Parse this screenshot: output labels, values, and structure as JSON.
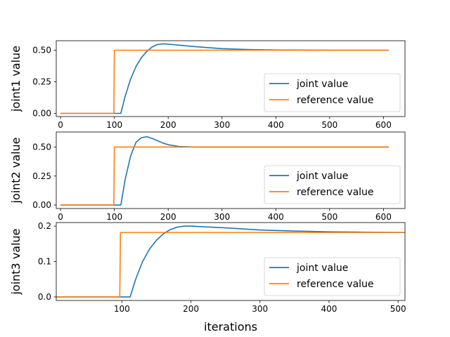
{
  "figure": {
    "xlabel": "iterations"
  },
  "colors": {
    "joint": "#1f77b4",
    "reference": "#ff7f0e"
  },
  "chart_data": [
    {
      "type": "line",
      "ylabel": "joint1 value",
      "xlim": [
        -8,
        640
      ],
      "ylim": [
        -0.025,
        0.575
      ],
      "xticks": [
        0,
        100,
        200,
        300,
        400,
        500,
        600
      ],
      "yticks": [
        0.0,
        0.25,
        0.5
      ],
      "ytick_labels": [
        "0.00",
        "0.25",
        "0.50"
      ],
      "legend": {
        "position": "lower-right",
        "entries": [
          "joint value",
          "reference value"
        ]
      },
      "series": [
        {
          "name": "joint value",
          "color": "#1f77b4",
          "x": [
            0,
            110,
            112,
            120,
            130,
            140,
            150,
            160,
            170,
            180,
            190,
            200,
            220,
            250,
            300,
            350,
            400,
            450,
            500,
            550,
            610
          ],
          "y": [
            0,
            0,
            0,
            0.135,
            0.27,
            0.37,
            0.44,
            0.49,
            0.525,
            0.545,
            0.55,
            0.548,
            0.54,
            0.528,
            0.512,
            0.505,
            0.502,
            0.501,
            0.5,
            0.5,
            0.5
          ]
        },
        {
          "name": "reference value",
          "color": "#ff7f0e",
          "x": [
            0,
            99,
            100,
            610
          ],
          "y": [
            0,
            0,
            0.5,
            0.5
          ]
        }
      ]
    },
    {
      "type": "line",
      "ylabel": "joint2 value",
      "xlim": [
        -8,
        640
      ],
      "ylim": [
        -0.03,
        0.63
      ],
      "xticks": [
        0,
        100,
        200,
        300,
        400,
        500,
        600
      ],
      "yticks": [
        0.0,
        0.25,
        0.5
      ],
      "ytick_labels": [
        "0.00",
        "0.25",
        "0.50"
      ],
      "legend": {
        "position": "lower-right",
        "entries": [
          "joint value",
          "reference value"
        ]
      },
      "series": [
        {
          "name": "joint value",
          "color": "#1f77b4",
          "x": [
            0,
            110,
            112,
            120,
            130,
            140,
            150,
            160,
            170,
            180,
            190,
            200,
            220,
            250,
            300,
            350,
            610
          ],
          "y": [
            0,
            0,
            0,
            0.22,
            0.42,
            0.54,
            0.58,
            0.59,
            0.575,
            0.555,
            0.535,
            0.52,
            0.505,
            0.5,
            0.5,
            0.5,
            0.5
          ]
        },
        {
          "name": "reference value",
          "color": "#ff7f0e",
          "x": [
            0,
            99,
            100,
            610
          ],
          "y": [
            0,
            0,
            0.5,
            0.5
          ]
        }
      ]
    },
    {
      "type": "line",
      "ylabel": "joint3 value",
      "xlabel": "iterations",
      "xlim": [
        5,
        510
      ],
      "ylim": [
        -0.01,
        0.21
      ],
      "xticks": [
        100,
        200,
        300,
        400,
        500
      ],
      "yticks": [
        0.0,
        0.1,
        0.2
      ],
      "ytick_labels": [
        "0.0",
        "0.1",
        "0.2"
      ],
      "legend": {
        "position": "lower-right",
        "entries": [
          "joint value",
          "reference value"
        ]
      },
      "series": [
        {
          "name": "joint value",
          "color": "#1f77b4",
          "x": [
            5,
            110,
            112,
            120,
            130,
            140,
            150,
            160,
            170,
            180,
            190,
            200,
            220,
            250,
            300,
            350,
            400,
            450,
            510
          ],
          "y": [
            0,
            0,
            0,
            0.05,
            0.1,
            0.135,
            0.16,
            0.178,
            0.19,
            0.197,
            0.2,
            0.2,
            0.198,
            0.195,
            0.189,
            0.186,
            0.184,
            0.183,
            0.182
          ]
        },
        {
          "name": "reference value",
          "color": "#ff7f0e",
          "x": [
            5,
            97,
            98,
            510
          ],
          "y": [
            0,
            0,
            0.182,
            0.182
          ]
        }
      ]
    }
  ]
}
